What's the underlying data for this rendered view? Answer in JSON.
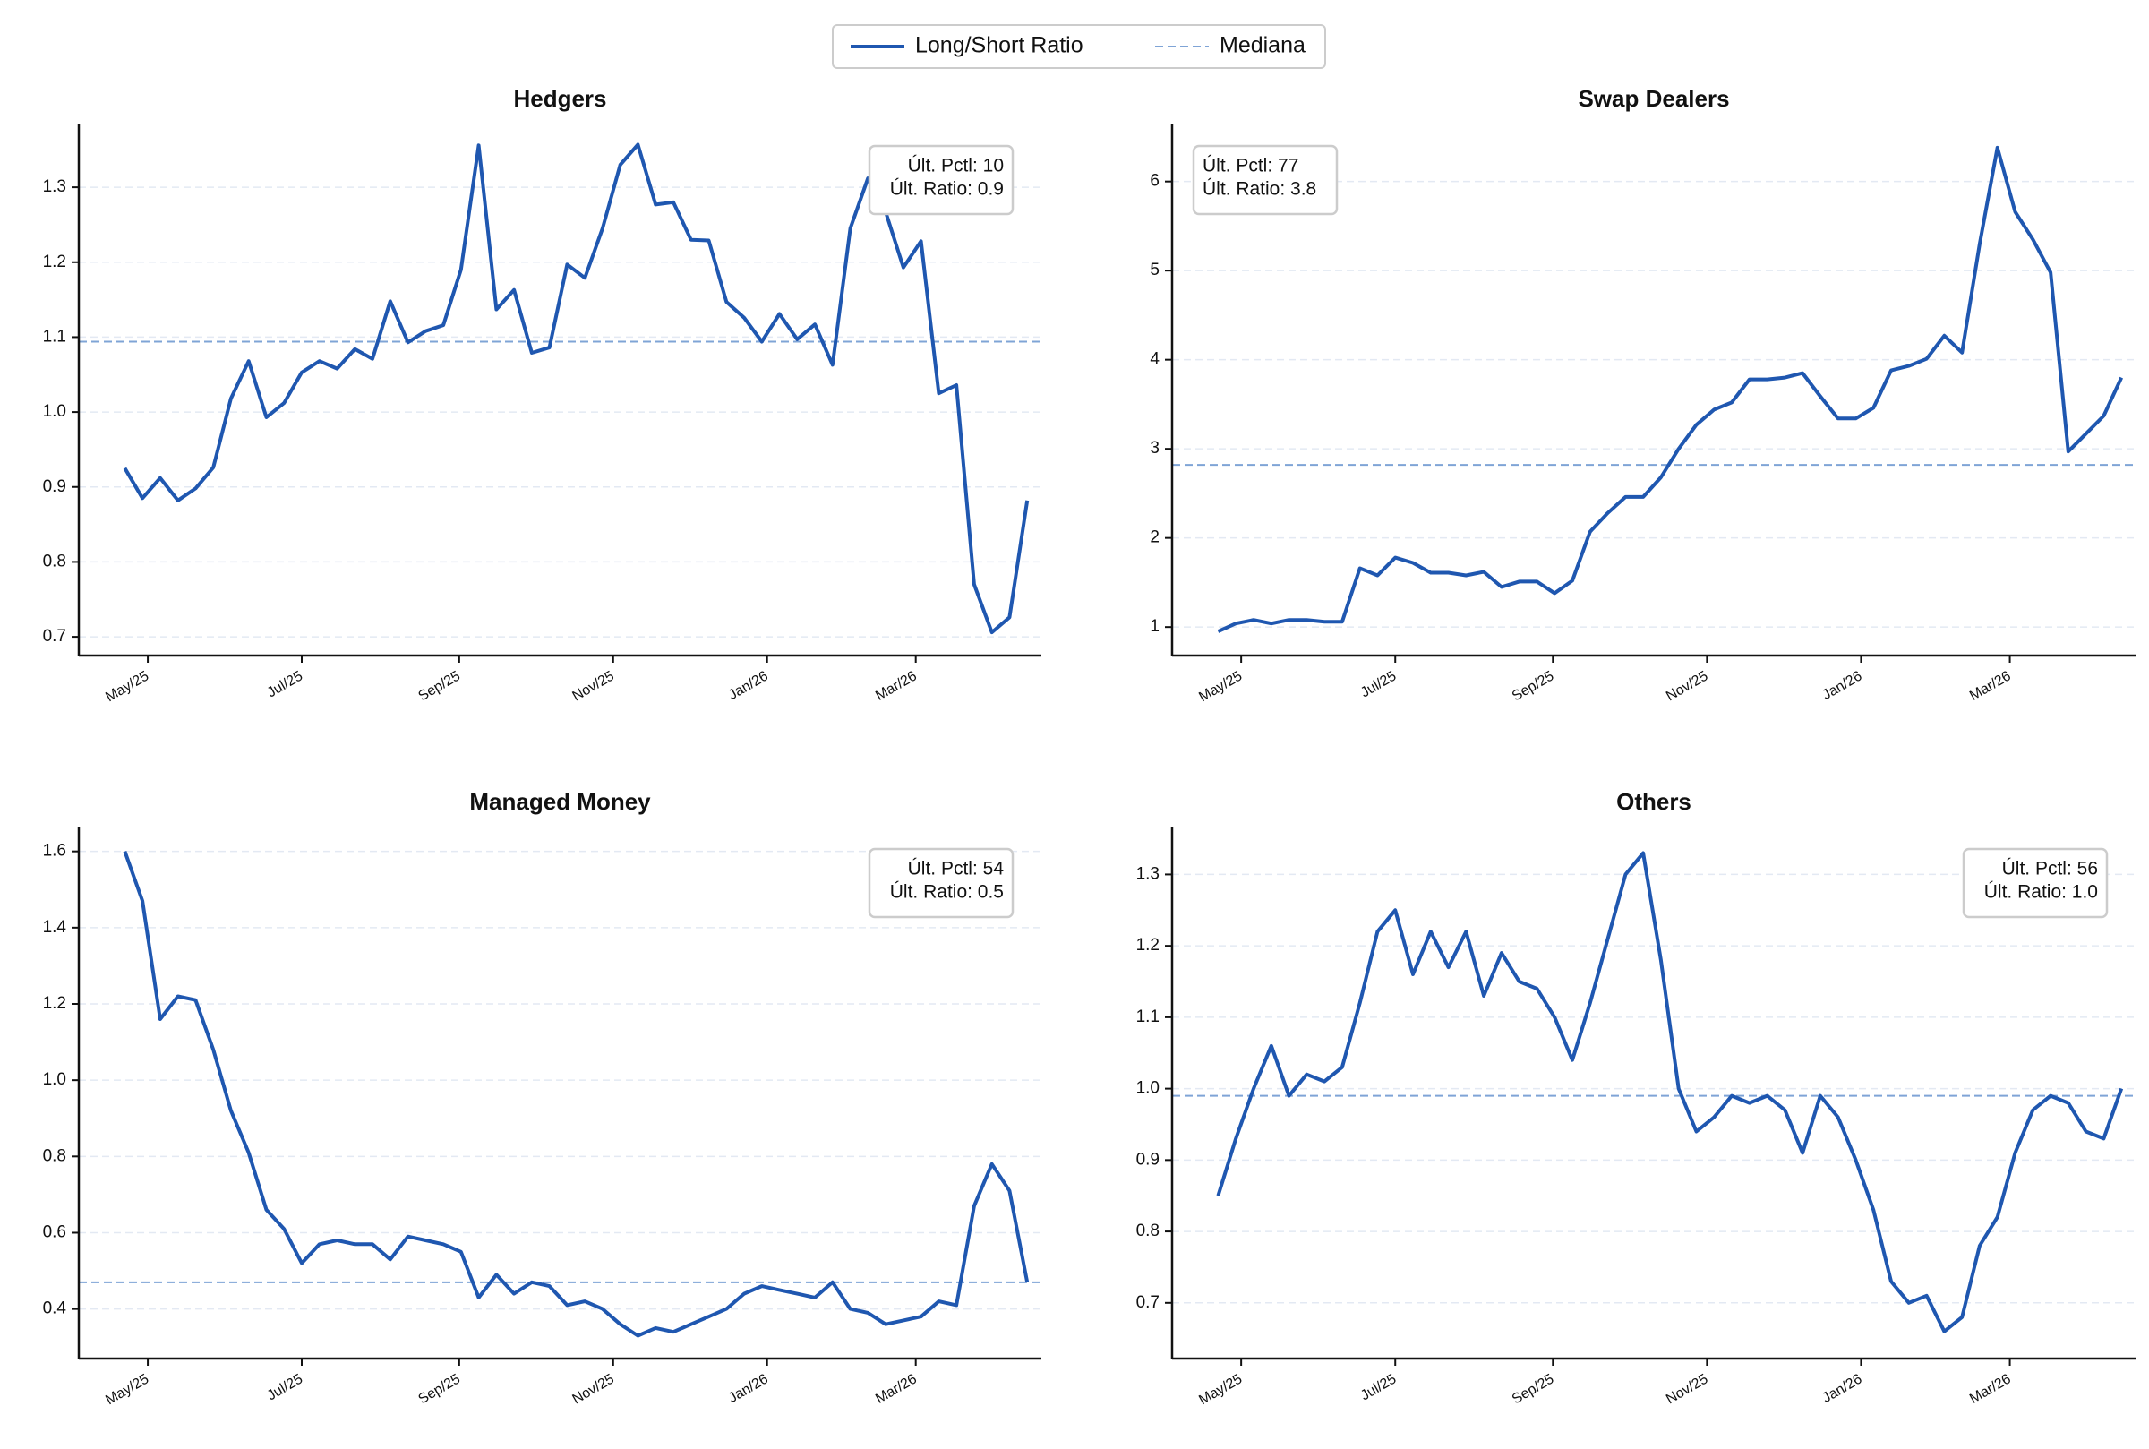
{
  "legend": {
    "entries": [
      {
        "name": "Long/Short Ratio",
        "color": "#1f57b0",
        "style": "solid"
      },
      {
        "name": "Mediana",
        "color": "#7fa4d6",
        "style": "dashed"
      }
    ]
  },
  "chart_data": [
    {
      "type": "line",
      "title": "Hedgers",
      "color": "#1f57b0",
      "median_color": "#7fa4d6",
      "median": 1.094,
      "values": [
        0.925,
        0.885,
        0.912,
        0.882,
        0.898,
        0.926,
        1.018,
        1.068,
        0.993,
        1.012,
        1.053,
        1.068,
        1.058,
        1.084,
        1.071,
        1.148,
        1.093,
        1.108,
        1.116,
        1.19,
        1.356,
        1.137,
        1.163,
        1.079,
        1.086,
        1.197,
        1.179,
        1.245,
        1.33,
        1.357,
        1.277,
        1.28,
        1.23,
        1.229,
        1.147,
        1.126,
        1.094,
        1.131,
        1.097,
        1.117,
        1.063,
        1.245,
        1.312,
        1.267,
        1.193,
        1.228,
        1.025,
        1.036,
        0.77,
        0.706,
        0.726,
        0.882
      ],
      "xlim": [
        -2.6,
        51.8
      ],
      "xticks": [
        {
          "value": 1.3,
          "label": "May/25"
        },
        {
          "value": 10,
          "label": "Jul/25"
        },
        {
          "value": 18.9,
          "label": "Sep/25"
        },
        {
          "value": 27.6,
          "label": "Nov/25"
        },
        {
          "value": 36.3,
          "label": "Jan/26"
        },
        {
          "value": 44.7,
          "label": "Mar/26"
        }
      ],
      "ylim": [
        0.675,
        1.385
      ],
      "yticks": [
        0.7,
        0.8,
        0.9,
        {
          "value": 1,
          "label": "1.0"
        },
        1.1,
        1.2,
        1.3
      ],
      "grid": true,
      "annotation": [
        "Últ. Pctl: 10",
        "Últ. Ratio: 0.9"
      ],
      "annotation_loc": "upper right"
    },
    {
      "type": "line",
      "title": "Swap Dealers",
      "color": "#1f57b0",
      "median_color": "#7fa4d6",
      "median": 2.82,
      "values": [
        0.95,
        1.04,
        1.08,
        1.04,
        1.08,
        1.08,
        1.06,
        1.06,
        1.66,
        1.58,
        1.78,
        1.72,
        1.61,
        1.61,
        1.58,
        1.62,
        1.45,
        1.51,
        1.51,
        1.38,
        1.52,
        2.07,
        2.28,
        2.46,
        2.46,
        2.68,
        3.0,
        3.27,
        3.44,
        3.52,
        3.78,
        3.78,
        3.8,
        3.85,
        3.59,
        3.34,
        3.34,
        3.46,
        3.88,
        3.93,
        4.01,
        4.27,
        4.08,
        5.3,
        6.38,
        5.66,
        5.35,
        4.98,
        2.97,
        3.17,
        3.37,
        3.8
      ],
      "xlim": [
        -2.6,
        51.8
      ],
      "xticks": [
        {
          "value": 1.3,
          "label": "May/25"
        },
        {
          "value": 10,
          "label": "Jul/25"
        },
        {
          "value": 18.9,
          "label": "Sep/25"
        },
        {
          "value": 27.6,
          "label": "Nov/25"
        },
        {
          "value": 36.3,
          "label": "Jan/26"
        },
        {
          "value": 44.7,
          "label": "Mar/26"
        }
      ],
      "ylim": [
        0.68,
        6.65
      ],
      "yticks": [
        1,
        2,
        3,
        4,
        5,
        6
      ],
      "grid": true,
      "annotation": [
        "Últ. Pctl: 77",
        "Últ. Ratio: 3.8"
      ],
      "annotation_loc": "upper left"
    },
    {
      "type": "line",
      "title": "Managed Money",
      "color": "#1f57b0",
      "median_color": "#7fa4d6",
      "median": 0.47,
      "values": [
        1.6,
        1.47,
        1.16,
        1.22,
        1.21,
        1.08,
        0.92,
        0.81,
        0.66,
        0.61,
        0.52,
        0.57,
        0.58,
        0.57,
        0.57,
        0.53,
        0.59,
        0.58,
        0.57,
        0.55,
        0.43,
        0.49,
        0.44,
        0.47,
        0.46,
        0.41,
        0.42,
        0.4,
        0.36,
        0.33,
        0.35,
        0.34,
        0.36,
        0.38,
        0.4,
        0.44,
        0.46,
        0.45,
        0.44,
        0.43,
        0.47,
        0.4,
        0.39,
        0.36,
        0.37,
        0.38,
        0.42,
        0.41,
        0.67,
        0.78,
        0.71,
        0.47
      ],
      "xlim": [
        -2.6,
        51.8
      ],
      "xticks": [
        {
          "value": 1.3,
          "label": "May/25"
        },
        {
          "value": 10,
          "label": "Jul/25"
        },
        {
          "value": 18.9,
          "label": "Sep/25"
        },
        {
          "value": 27.6,
          "label": "Nov/25"
        },
        {
          "value": 36.3,
          "label": "Jan/26"
        },
        {
          "value": 44.7,
          "label": "Mar/26"
        }
      ],
      "ylim": [
        0.27,
        1.665
      ],
      "yticks": [
        0.4,
        0.6,
        0.8,
        {
          "value": 1,
          "label": "1.0"
        },
        1.2,
        1.4,
        1.6
      ],
      "grid": true,
      "annotation": [
        "Últ. Pctl: 54",
        "Últ. Ratio: 0.5"
      ],
      "annotation_loc": "upper right"
    },
    {
      "type": "line",
      "title": "Others",
      "color": "#1f57b0",
      "median_color": "#7fa4d6",
      "median": 0.99,
      "values": [
        0.85,
        0.93,
        1.0,
        1.06,
        0.99,
        1.02,
        1.01,
        1.03,
        1.12,
        1.22,
        1.25,
        1.16,
        1.22,
        1.17,
        1.22,
        1.13,
        1.19,
        1.15,
        1.14,
        1.1,
        1.04,
        1.12,
        1.21,
        1.3,
        1.33,
        1.18,
        1.0,
        0.94,
        0.96,
        0.99,
        0.98,
        0.99,
        0.97,
        0.91,
        0.99,
        0.96,
        0.9,
        0.83,
        0.73,
        0.7,
        0.71,
        0.66,
        0.68,
        0.78,
        0.82,
        0.91,
        0.97,
        0.99,
        0.98,
        0.94,
        0.93,
        1.0
      ],
      "xlim": [
        -2.6,
        51.8
      ],
      "xticks": [
        {
          "value": 1.3,
          "label": "May/25"
        },
        {
          "value": 10,
          "label": "Jul/25"
        },
        {
          "value": 18.9,
          "label": "Sep/25"
        },
        {
          "value": 27.6,
          "label": "Nov/25"
        },
        {
          "value": 36.3,
          "label": "Jan/26"
        },
        {
          "value": 44.7,
          "label": "Mar/26"
        }
      ],
      "ylim": [
        0.622,
        1.367
      ],
      "yticks": [
        0.7,
        0.8,
        0.9,
        {
          "value": 1,
          "label": "1.0"
        },
        1.1,
        1.2,
        1.3
      ],
      "grid": true,
      "annotation": [
        "Últ. Pctl: 56",
        "Últ. Ratio: 1.0"
      ],
      "annotation_loc": "upper right"
    }
  ]
}
